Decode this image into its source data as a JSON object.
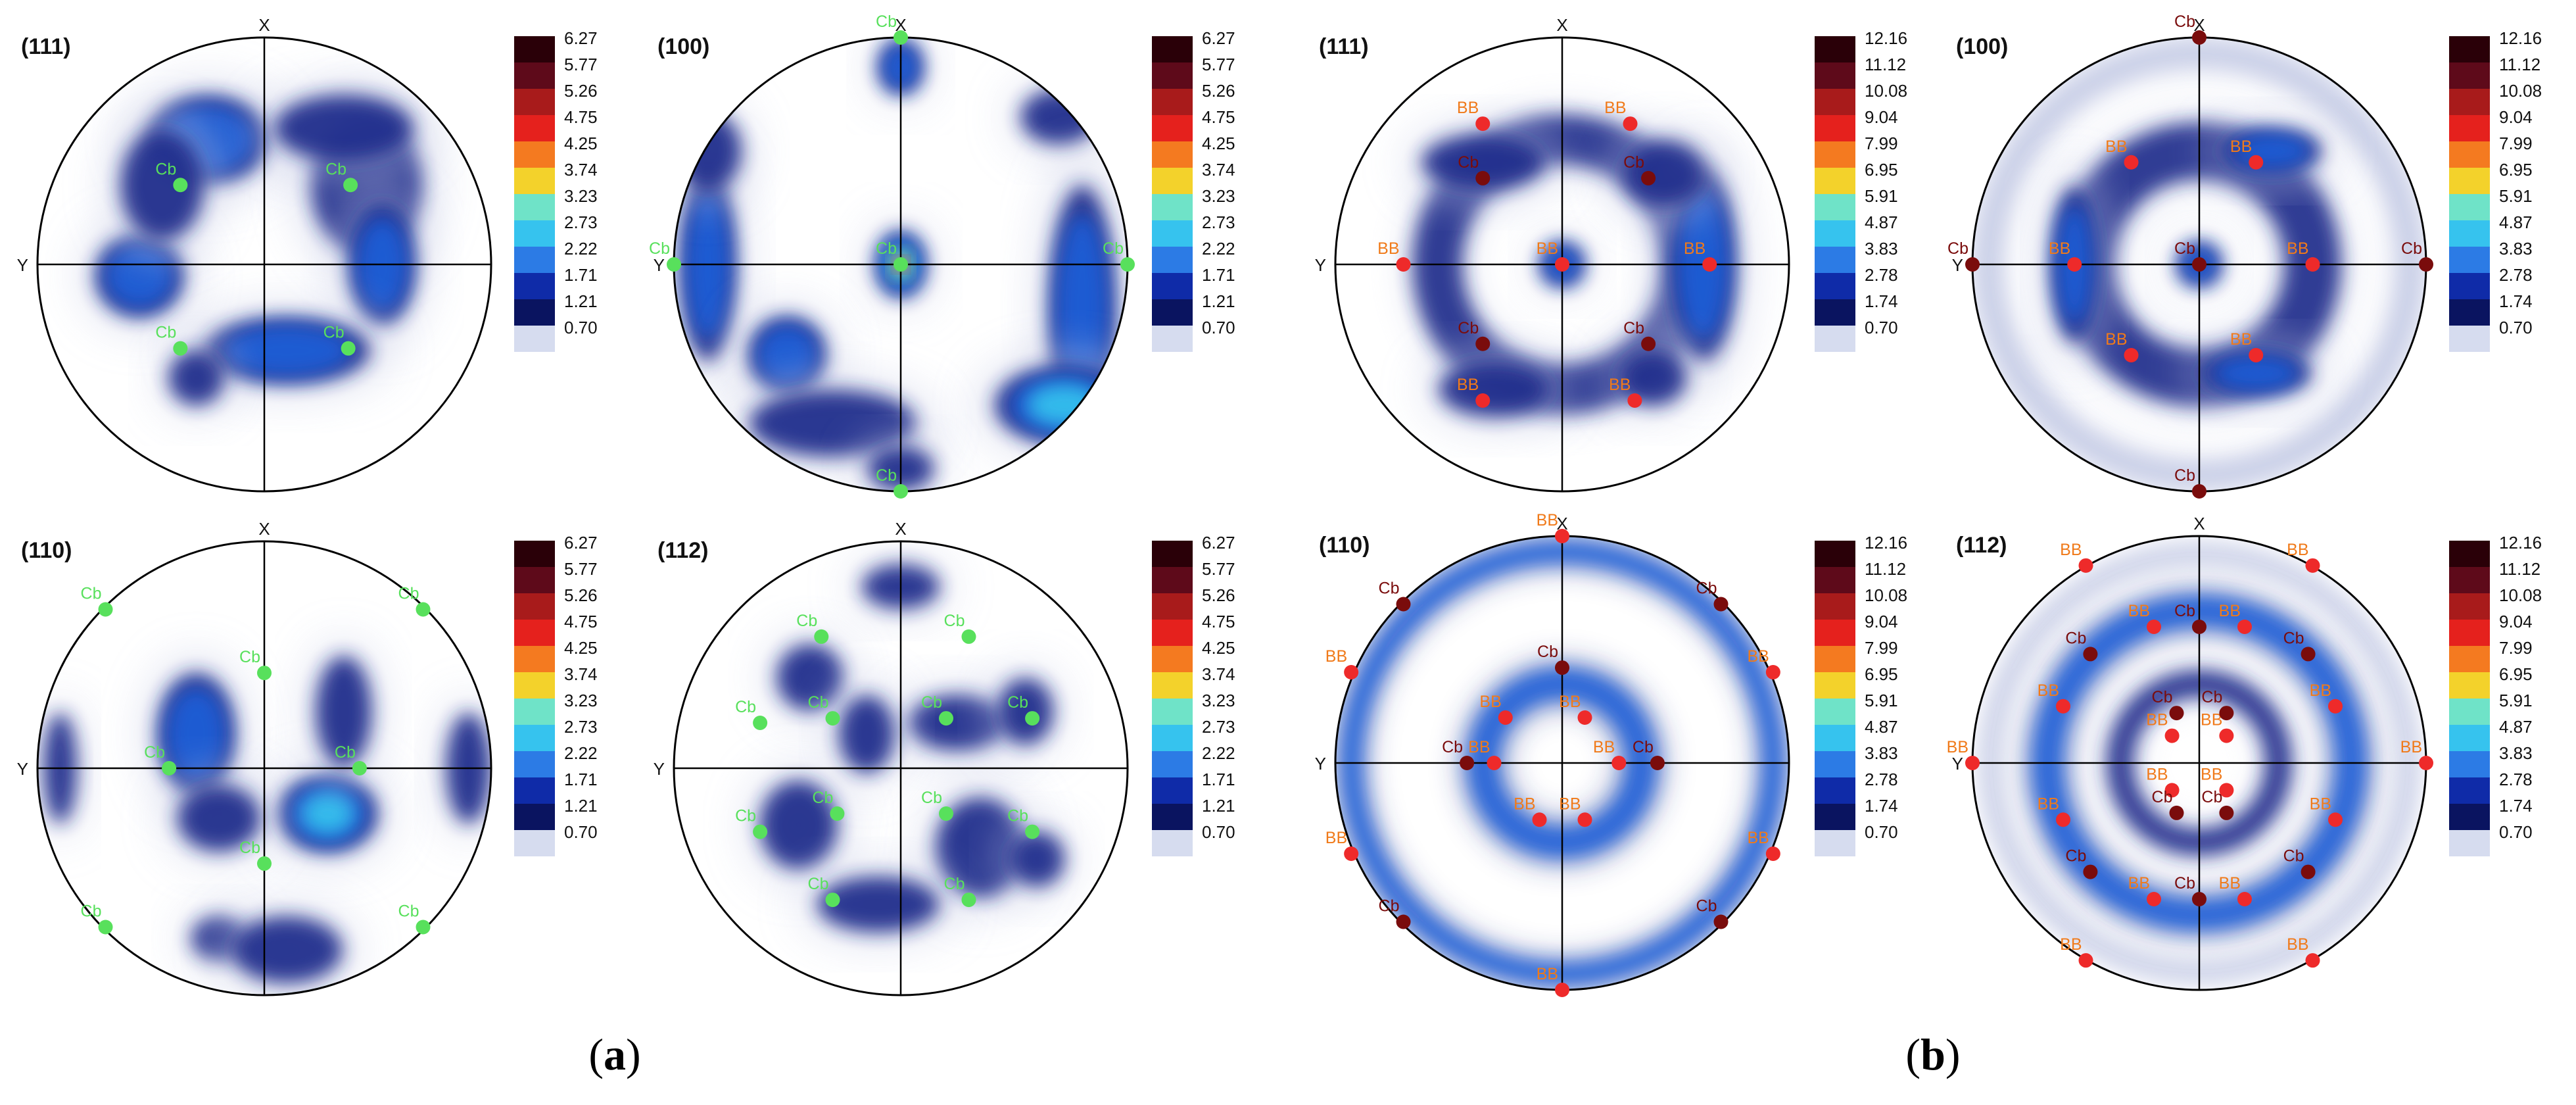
{
  "figure": {
    "captions": [
      {
        "text_pre": "(",
        "letter": "a",
        "text_post": ")"
      },
      {
        "text_pre": "(",
        "letter": "b",
        "text_post": ")"
      }
    ],
    "axis_labels": {
      "x": "X",
      "y": "Y"
    },
    "scales": {
      "a": [
        "6.27",
        "5.77",
        "5.26",
        "4.75",
        "4.25",
        "3.74",
        "3.23",
        "2.73",
        "2.22",
        "1.71",
        "1.21",
        "0.70"
      ],
      "b": [
        "12.16",
        "11.12",
        "10.08",
        "9.04",
        "7.99",
        "6.95",
        "5.91",
        "4.87",
        "3.83",
        "2.78",
        "1.74",
        "0.70"
      ]
    },
    "colorbar_colors": [
      "#2a0008",
      "#5e0a1a",
      "#a81b1b",
      "#e5211d",
      "#f47a20",
      "#f3d22b",
      "#6fe3c8",
      "#36c3ee",
      "#2c7be5",
      "#0f2ba8",
      "#0a1460",
      "#d6dcef"
    ],
    "marker_labels": {
      "cb": "Cb",
      "bb": "BB"
    },
    "marker_colors": {
      "a": "#58e05c",
      "b_bb": "#ee2a2a",
      "b_cb": "#7a0c0c"
    },
    "panels": [
      {
        "id": "a-111",
        "title": "(111)"
      },
      {
        "id": "a-100",
        "title": "(100)"
      },
      {
        "id": "a-110",
        "title": "(110)"
      },
      {
        "id": "a-112",
        "title": "(112)"
      },
      {
        "id": "b-111",
        "title": "(111)"
      },
      {
        "id": "b-100",
        "title": "(100)"
      },
      {
        "id": "b-110",
        "title": "(110)"
      },
      {
        "id": "b-112",
        "title": "(112)"
      }
    ]
  }
}
